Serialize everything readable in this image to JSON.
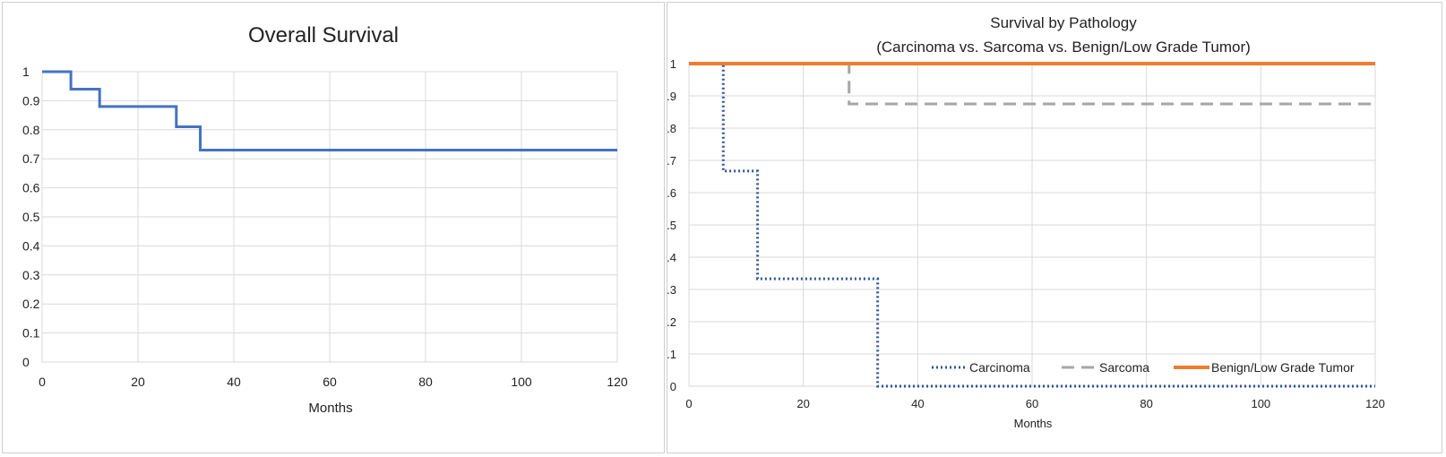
{
  "chart_data": [
    {
      "type": "line",
      "title": "Overall Survival",
      "xlabel": "Months",
      "ylabel": "",
      "xlim": [
        0,
        120
      ],
      "ylim": [
        0,
        1
      ],
      "x_ticks": [
        "0",
        "20",
        "40",
        "60",
        "80",
        "100",
        "120"
      ],
      "y_ticks": [
        "0",
        "0.1",
        "0.2",
        "0.3",
        "0.4",
        "0.5",
        "0.6",
        "0.7",
        "0.8",
        "0.9",
        "1"
      ],
      "grid": true,
      "legend": "none",
      "series": [
        {
          "style": "step",
          "color": "#4472c4",
          "dash": "solid",
          "x": [
            0,
            6,
            12,
            28,
            33,
            120
          ],
          "y": [
            1.0,
            0.94,
            0.88,
            0.81,
            0.73,
            0.73
          ]
        }
      ]
    },
    {
      "type": "line",
      "title": "Survival by Pathology",
      "subtitle": "(Carcinoma vs. Sarcoma vs. Benign/Low Grade Tumor)",
      "xlabel": "Months",
      "ylabel": "",
      "xlim": [
        0,
        120
      ],
      "ylim": [
        0,
        1
      ],
      "x_ticks": [
        "0",
        "20",
        "40",
        "60",
        "80",
        "100",
        "120"
      ],
      "y_ticks": [
        "0",
        "0.1",
        "0.2",
        "0.3",
        "0.4",
        "0.5",
        "0.6",
        "0.7",
        "0.8",
        "0.9",
        "1"
      ],
      "grid": true,
      "legend": "bottom-right",
      "series": [
        {
          "name": "Carcinoma",
          "style": "step",
          "color": "#2e5597",
          "dash": "dotted",
          "x": [
            0,
            6,
            12,
            33,
            120
          ],
          "y": [
            1.0,
            0.667,
            0.333,
            0.0,
            0.0
          ]
        },
        {
          "name": "Sarcoma",
          "style": "step",
          "color": "#a6a6a6",
          "dash": "dashed",
          "x": [
            0,
            28,
            120
          ],
          "y": [
            1.0,
            0.875,
            0.875
          ]
        },
        {
          "name": "Benign/Low Grade Tumor",
          "style": "step",
          "color": "#ed7d31",
          "dash": "solid",
          "x": [
            0,
            120
          ],
          "y": [
            1.0,
            1.0
          ]
        }
      ]
    }
  ]
}
